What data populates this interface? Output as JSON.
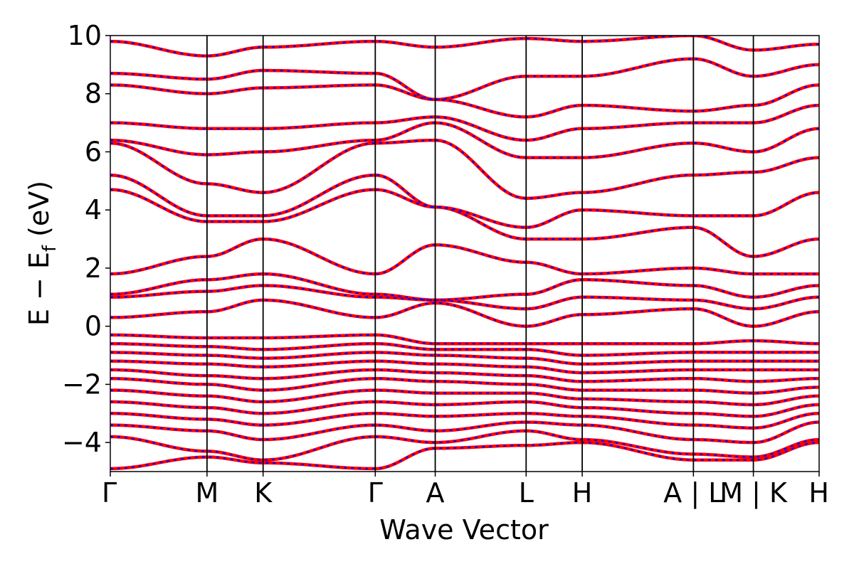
{
  "chart_data": {
    "type": "line",
    "title": "",
    "xlabel": "Wave Vector",
    "ylabel_parts": {
      "main": "E − E",
      "sub": "f",
      "unit": " (eV)"
    },
    "ylim": [
      -5,
      10
    ],
    "y_ticks": [
      -4,
      -2,
      0,
      2,
      4,
      6,
      8,
      10
    ],
    "y_tick_labels": [
      "−4",
      "−2",
      "0",
      "2",
      "4",
      "6",
      "8",
      "10"
    ],
    "x_ticks": [
      0,
      1.0,
      1.58,
      2.74,
      3.36,
      4.3,
      4.88,
      6.03,
      6.65,
      7.33
    ],
    "x_tick_labels": [
      "Γ",
      "M",
      "K",
      "Γ",
      "A",
      "L",
      "H",
      "A | L",
      "M | K",
      "H"
    ],
    "xlim": [
      0,
      7.33
    ],
    "grid": false,
    "series": [
      {
        "color": "#ff0000",
        "style": "solid",
        "bands": [
          {
            "x": [
              0,
              1.0,
              1.58,
              2.74,
              3.36,
              4.3,
              4.88,
              6.03,
              6.65,
              7.33
            ],
            "y": [
              -4.9,
              -4.5,
              -4.7,
              -4.9,
              -4.2,
              -4.1,
              -4.0,
              -4.6,
              -4.6,
              -4.0
            ]
          },
          {
            "x": [
              0,
              1.0,
              1.58,
              2.74,
              3.36,
              4.3,
              4.88,
              6.03,
              6.65,
              7.33
            ],
            "y": [
              -3.8,
              -4.3,
              -4.6,
              -3.8,
              -4.0,
              -3.6,
              -3.9,
              -4.4,
              -4.5,
              -3.9
            ]
          },
          {
            "x": [
              0,
              1.0,
              1.58,
              2.74,
              3.36,
              4.3,
              4.88,
              6.03,
              6.65,
              7.33
            ],
            "y": [
              -3.4,
              -3.6,
              -3.9,
              -3.4,
              -3.6,
              -3.3,
              -3.4,
              -3.9,
              -4.0,
              -3.3
            ]
          },
          {
            "x": [
              0,
              1.0,
              1.58,
              2.74,
              3.36,
              4.3,
              4.88,
              6.03,
              6.65,
              7.33
            ],
            "y": [
              -3.0,
              -3.2,
              -3.4,
              -3.0,
              -3.1,
              -3.0,
              -3.1,
              -3.4,
              -3.5,
              -3.0
            ]
          },
          {
            "x": [
              0,
              1.0,
              1.58,
              2.74,
              3.36,
              4.3,
              4.88,
              6.03,
              6.65,
              7.33
            ],
            "y": [
              -2.6,
              -2.8,
              -3.0,
              -2.6,
              -2.7,
              -2.6,
              -2.8,
              -3.0,
              -3.1,
              -2.7
            ]
          },
          {
            "x": [
              0,
              1.0,
              1.58,
              2.74,
              3.36,
              4.3,
              4.88,
              6.03,
              6.65,
              7.33
            ],
            "y": [
              -2.2,
              -2.4,
              -2.6,
              -2.2,
              -2.3,
              -2.3,
              -2.5,
              -2.6,
              -2.7,
              -2.4
            ]
          },
          {
            "x": [
              0,
              1.0,
              1.58,
              2.74,
              3.36,
              4.3,
              4.88,
              6.03,
              6.65,
              7.33
            ],
            "y": [
              -1.8,
              -2.0,
              -2.2,
              -1.8,
              -1.9,
              -2.0,
              -2.2,
              -2.2,
              -2.3,
              -2.1
            ]
          },
          {
            "x": [
              0,
              1.0,
              1.58,
              2.74,
              3.36,
              4.3,
              4.88,
              6.03,
              6.65,
              7.33
            ],
            "y": [
              -1.5,
              -1.7,
              -1.8,
              -1.5,
              -1.6,
              -1.7,
              -1.9,
              -1.8,
              -1.9,
              -1.8
            ]
          },
          {
            "x": [
              0,
              1.0,
              1.58,
              2.74,
              3.36,
              4.3,
              4.88,
              6.03,
              6.65,
              7.33
            ],
            "y": [
              -1.2,
              -1.3,
              -1.4,
              -1.2,
              -1.3,
              -1.4,
              -1.6,
              -1.5,
              -1.5,
              -1.5
            ]
          },
          {
            "x": [
              0,
              1.0,
              1.58,
              2.74,
              3.36,
              4.3,
              4.88,
              6.03,
              6.65,
              7.33
            ],
            "y": [
              -0.9,
              -1.0,
              -1.1,
              -0.9,
              -1.0,
              -1.1,
              -1.3,
              -1.2,
              -1.2,
              -1.2
            ]
          },
          {
            "x": [
              0,
              1.0,
              1.58,
              2.74,
              3.36,
              4.3,
              4.88,
              6.03,
              6.65,
              7.33
            ],
            "y": [
              -0.6,
              -0.7,
              -0.8,
              -0.6,
              -0.8,
              -0.8,
              -1.0,
              -0.9,
              -0.9,
              -0.9
            ]
          },
          {
            "x": [
              0,
              1.0,
              1.58,
              2.74,
              3.36,
              4.3,
              4.88,
              6.03,
              6.65,
              7.33
            ],
            "y": [
              -0.3,
              -0.4,
              -0.4,
              -0.3,
              -0.6,
              -0.6,
              -0.6,
              -0.6,
              -0.5,
              -0.6
            ]
          },
          {
            "x": [
              0,
              1.0,
              1.58,
              2.74,
              3.36,
              4.3,
              4.88,
              6.03,
              6.65,
              7.33
            ],
            "y": [
              0.3,
              0.5,
              0.9,
              0.3,
              0.8,
              0.0,
              0.4,
              0.6,
              0.0,
              0.5
            ]
          },
          {
            "x": [
              0,
              1.0,
              1.58,
              2.74,
              3.36,
              4.3,
              4.88,
              6.03,
              6.65,
              7.33
            ],
            "y": [
              1.0,
              1.2,
              1.4,
              1.0,
              0.9,
              0.6,
              1.0,
              0.9,
              0.6,
              1.0
            ]
          },
          {
            "x": [
              0,
              1.0,
              1.58,
              2.74,
              3.36,
              4.3,
              4.88,
              6.03,
              6.65,
              7.33
            ],
            "y": [
              1.1,
              1.6,
              1.8,
              1.1,
              0.9,
              1.1,
              1.6,
              1.4,
              1.0,
              1.4
            ]
          },
          {
            "x": [
              0,
              1.0,
              1.58,
              2.74,
              3.36,
              4.3,
              4.88,
              6.03,
              6.65,
              7.33
            ],
            "y": [
              1.8,
              2.4,
              3.0,
              1.8,
              2.8,
              2.2,
              1.8,
              2.0,
              1.8,
              1.8
            ]
          },
          {
            "x": [
              0,
              1.0,
              1.58,
              2.74,
              3.36,
              4.3,
              4.88,
              6.03,
              6.65,
              7.33
            ],
            "y": [
              4.7,
              3.6,
              3.6,
              4.7,
              4.1,
              3.0,
              3.0,
              3.4,
              2.4,
              3.0
            ]
          },
          {
            "x": [
              0,
              1.0,
              1.58,
              2.74,
              3.36,
              4.3,
              4.88,
              6.03,
              6.65,
              7.33
            ],
            "y": [
              5.2,
              3.8,
              3.8,
              5.2,
              4.1,
              3.4,
              4.0,
              3.8,
              3.8,
              4.6
            ]
          },
          {
            "x": [
              0,
              1.0,
              1.58,
              2.74,
              3.36,
              4.3,
              4.88,
              6.03,
              6.65,
              7.33
            ],
            "y": [
              6.3,
              4.9,
              4.6,
              6.3,
              6.4,
              4.4,
              4.6,
              5.2,
              5.3,
              5.8
            ]
          },
          {
            "x": [
              0,
              1.0,
              1.58,
              2.74,
              3.36,
              4.3,
              4.88,
              6.03,
              6.65,
              7.33
            ],
            "y": [
              6.4,
              5.9,
              6.0,
              6.4,
              7.0,
              5.8,
              5.8,
              6.3,
              6.0,
              6.8
            ]
          },
          {
            "x": [
              0,
              1.0,
              1.58,
              2.74,
              3.36,
              4.3,
              4.88,
              6.03,
              6.65,
              7.33
            ],
            "y": [
              7.0,
              6.8,
              6.8,
              7.0,
              7.2,
              6.4,
              6.8,
              7.0,
              7.0,
              7.6
            ]
          },
          {
            "x": [
              0,
              1.0,
              1.58,
              2.74,
              3.36,
              4.3,
              4.88,
              6.03,
              6.65,
              7.33
            ],
            "y": [
              8.3,
              8.0,
              8.2,
              8.3,
              7.8,
              7.2,
              7.6,
              7.4,
              7.6,
              8.3
            ]
          },
          {
            "x": [
              0,
              1.0,
              1.58,
              2.74,
              3.36,
              4.3,
              4.88,
              6.03,
              6.65,
              7.33
            ],
            "y": [
              8.7,
              8.5,
              8.8,
              8.7,
              7.8,
              8.6,
              8.6,
              9.2,
              8.6,
              9.0
            ]
          },
          {
            "x": [
              0,
              1.0,
              1.58,
              2.74,
              3.36,
              4.3,
              4.88,
              6.03,
              6.65,
              7.33
            ],
            "y": [
              9.8,
              9.3,
              9.6,
              9.8,
              9.6,
              9.9,
              9.8,
              10.0,
              9.5,
              9.7
            ]
          }
        ]
      },
      {
        "color": "#0000ff",
        "style": "dashed",
        "same_bands_as_series": 0
      }
    ]
  }
}
